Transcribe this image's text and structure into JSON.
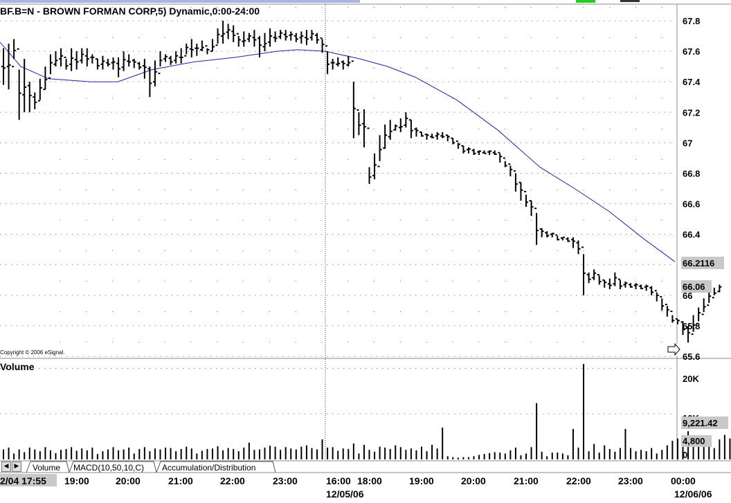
{
  "chart_data": {
    "type": "bar",
    "title": "BF.B=N - BROWN FORMAN CORP,5) Dynamic,0:00-24:00",
    "copyright": "Copyright © 2006 eSignal.",
    "price_axis": {
      "ticks": [
        "67.8",
        "67.6",
        "67.4",
        "67.2",
        "67",
        "66.8",
        "66.6",
        "66.4",
        "66.2",
        "66",
        "65.8",
        "65.6"
      ],
      "ylim": [
        65.6,
        67.8
      ]
    },
    "price_labels": {
      "moving_average": "66.2116",
      "last": "66.06"
    },
    "volume_panel": {
      "title": "Volume",
      "ticks": [
        "20K",
        "10K",
        "0"
      ],
      "labels": {
        "average": "9,221.42",
        "last": "4,800"
      },
      "ylim": [
        0,
        21000
      ]
    },
    "x_axis": {
      "labels": [
        "2/04 17:55",
        "19:00",
        "20:00",
        "21:00",
        "22:00",
        "23:00",
        "16:00",
        "18:00",
        "19:00",
        "20:00",
        "21:00",
        "22:00",
        "23:00",
        "00:00"
      ],
      "date_labels": [
        "12/05/06",
        "12/06/06"
      ]
    },
    "tabs": [
      "Volume",
      "MACD(10,50,10,C)",
      "Accumulation/Distribution"
    ],
    "colors": {
      "price": "#000000",
      "moving_average": "#2020a0",
      "grid": "#777777",
      "last_label_bg": "#c8c8c8"
    },
    "price_bars": [
      [
        67.62,
        67.38
      ],
      [
        67.65,
        67.35
      ],
      [
        67.68,
        67.55
      ],
      [
        67.48,
        67.15
      ],
      [
        67.55,
        67.2
      ],
      [
        67.4,
        67.2
      ],
      [
        67.33,
        67.22
      ],
      [
        67.42,
        67.28
      ],
      [
        67.5,
        67.35
      ],
      [
        67.58,
        67.45
      ],
      [
        67.6,
        67.5
      ],
      [
        67.62,
        67.5
      ],
      [
        67.55,
        67.48
      ],
      [
        67.62,
        67.47
      ],
      [
        67.6,
        67.48
      ],
      [
        67.62,
        67.52
      ],
      [
        67.62,
        67.5
      ],
      [
        67.58,
        67.52
      ],
      [
        67.55,
        67.48
      ],
      [
        67.57,
        67.48
      ],
      [
        67.55,
        67.5
      ],
      [
        67.56,
        67.48
      ],
      [
        67.56,
        67.43
      ],
      [
        67.6,
        67.47
      ],
      [
        67.58,
        67.5
      ],
      [
        67.55,
        67.49
      ],
      [
        67.53,
        67.48
      ],
      [
        67.55,
        67.42
      ],
      [
        67.5,
        67.3
      ],
      [
        67.54,
        67.37
      ],
      [
        67.6,
        67.5
      ],
      [
        67.58,
        67.53
      ],
      [
        67.57,
        67.51
      ],
      [
        67.6,
        67.52
      ],
      [
        67.62,
        67.52
      ],
      [
        67.65,
        67.58
      ],
      [
        67.68,
        67.56
      ],
      [
        67.65,
        67.57
      ],
      [
        67.67,
        67.6
      ],
      [
        67.62,
        67.58
      ],
      [
        67.68,
        67.6
      ],
      [
        67.75,
        67.65
      ],
      [
        67.8,
        67.65
      ],
      [
        67.78,
        67.68
      ],
      [
        67.77,
        67.66
      ],
      [
        67.7,
        67.63
      ],
      [
        67.73,
        67.63
      ],
      [
        67.72,
        67.66
      ],
      [
        67.74,
        67.63
      ],
      [
        67.7,
        67.56
      ],
      [
        67.72,
        67.6
      ],
      [
        67.75,
        67.63
      ],
      [
        67.73,
        67.66
      ],
      [
        67.74,
        67.68
      ],
      [
        67.74,
        67.67
      ],
      [
        67.73,
        67.67
      ],
      [
        67.72,
        67.66
      ],
      [
        67.73,
        67.65
      ],
      [
        67.74,
        67.64
      ],
      [
        67.74,
        67.67
      ],
      [
        67.72,
        67.65
      ],
      [
        67.68,
        67.59
      ],
      [
        67.6,
        67.45
      ],
      [
        67.55,
        67.48
      ],
      [
        67.56,
        67.5
      ],
      [
        67.54,
        67.48
      ],
      [
        67.57,
        67.5
      ],
      [
        67.4,
        67.03
      ],
      [
        67.2,
        67.05
      ],
      [
        67.22,
        66.97
      ],
      [
        66.84,
        66.73
      ],
      [
        66.93,
        66.76
      ],
      [
        67.05,
        66.88
      ],
      [
        67.12,
        66.96
      ],
      [
        67.15,
        67.02
      ],
      [
        67.12,
        67.08
      ],
      [
        67.16,
        67.07
      ],
      [
        67.2,
        67.1
      ],
      [
        67.15,
        67.03
      ],
      [
        67.1,
        67.04
      ],
      [
        67.07,
        67.04
      ],
      [
        67.06,
        67.02
      ],
      [
        67.06,
        67.03
      ],
      [
        67.07,
        67.02
      ],
      [
        67.07,
        67.03
      ],
      [
        67.05,
        67.01
      ],
      [
        67.03,
        66.99
      ],
      [
        67.0,
        66.96
      ],
      [
        66.98,
        66.93
      ],
      [
        66.97,
        66.93
      ],
      [
        66.96,
        66.92
      ],
      [
        66.95,
        66.92
      ],
      [
        66.95,
        66.93
      ],
      [
        66.95,
        66.92
      ],
      [
        66.95,
        66.92
      ],
      [
        66.93,
        66.87
      ],
      [
        66.88,
        66.84
      ],
      [
        66.85,
        66.78
      ],
      [
        66.8,
        66.68
      ],
      [
        66.74,
        66.62
      ],
      [
        66.66,
        66.58
      ],
      [
        66.62,
        66.52
      ],
      [
        66.54,
        66.33
      ],
      [
        66.44,
        66.38
      ],
      [
        66.42,
        66.38
      ],
      [
        66.41,
        66.38
      ],
      [
        66.39,
        66.36
      ],
      [
        66.38,
        66.36
      ],
      [
        66.38,
        66.35
      ],
      [
        66.38,
        66.31
      ],
      [
        66.36,
        66.27
      ],
      [
        66.27,
        66.0
      ],
      [
        66.15,
        66.08
      ],
      [
        66.17,
        66.1
      ],
      [
        66.13,
        66.07
      ],
      [
        66.1,
        66.05
      ],
      [
        66.11,
        66.04
      ],
      [
        66.15,
        66.06
      ],
      [
        66.1,
        66.04
      ],
      [
        66.09,
        66.05
      ],
      [
        66.08,
        66.05
      ],
      [
        66.08,
        66.04
      ],
      [
        66.07,
        66.04
      ],
      [
        66.07,
        66.03
      ],
      [
        66.06,
        66.0
      ],
      [
        66.02,
        65.96
      ],
      [
        65.98,
        65.9
      ],
      [
        65.93,
        65.86
      ],
      [
        65.87,
        65.82
      ],
      [
        65.84,
        65.81
      ],
      [
        65.83,
        65.74
      ],
      [
        65.8,
        65.69
      ],
      [
        65.87,
        65.76
      ],
      [
        65.92,
        65.83
      ],
      [
        65.98,
        65.89
      ],
      [
        66.02,
        65.95
      ],
      [
        66.05,
        66.0
      ],
      [
        66.07,
        66.02
      ]
    ],
    "moving_average": [
      [
        0,
        67.66
      ],
      [
        30,
        67.5
      ],
      [
        70,
        67.42
      ],
      [
        130,
        67.4
      ],
      [
        170,
        67.4
      ],
      [
        220,
        67.48
      ],
      [
        280,
        67.53
      ],
      [
        340,
        67.56
      ],
      [
        400,
        67.6
      ],
      [
        430,
        67.61
      ],
      [
        470,
        67.6
      ],
      [
        520,
        67.55
      ],
      [
        560,
        67.5
      ],
      [
        600,
        67.43
      ],
      [
        660,
        67.28
      ],
      [
        720,
        67.08
      ],
      [
        780,
        66.84
      ],
      [
        830,
        66.7
      ],
      [
        880,
        66.55
      ],
      [
        930,
        66.37
      ],
      [
        975,
        66.22
      ]
    ],
    "volume": [
      2200,
      2600,
      1300,
      2200,
      1600,
      2600,
      2200,
      1800,
      2700,
      2000,
      1400,
      2100,
      2300,
      2700,
      1900,
      2400,
      2000,
      2600,
      1200,
      1800,
      2200,
      2700,
      2000,
      2200,
      2600,
      1300,
      2300,
      2700,
      1800,
      2400,
      2200,
      2600,
      2500,
      1800,
      2300,
      2800,
      2400,
      1300,
      1900,
      2300,
      2400,
      2900,
      2000,
      2500,
      2300,
      1800,
      2600,
      3700,
      2100,
      2200,
      2600,
      3000,
      2800,
      2100,
      2700,
      2400,
      2200,
      2800,
      3100,
      2500,
      2200,
      4400,
      2600,
      2700,
      1900,
      2400,
      2300,
      3500,
      1300,
      3200,
      2100,
      1700,
      2800,
      2600,
      2300,
      3100,
      2700,
      2100,
      2400,
      2000,
      2800,
      1800,
      3200,
      2400,
      7000,
      700,
      500,
      400,
      500,
      500,
      700,
      1000,
      1200,
      1400,
      1600,
      1500,
      1300,
      2000,
      2600,
      900,
      1300,
      2700,
      12400,
      1700,
      700,
      1500,
      1500,
      1300,
      900,
      6700,
      2600,
      21000,
      1800,
      3400,
      1500,
      3100,
      2300,
      1700,
      2500,
      6700,
      2500,
      1800,
      2100,
      1800,
      2500,
      1300,
      2100,
      3100,
      4100,
      4600,
      3700,
      6200,
      4000,
      5200,
      3200,
      3800,
      2500,
      4400,
      5400,
      4600,
      7200,
      4800
    ]
  }
}
